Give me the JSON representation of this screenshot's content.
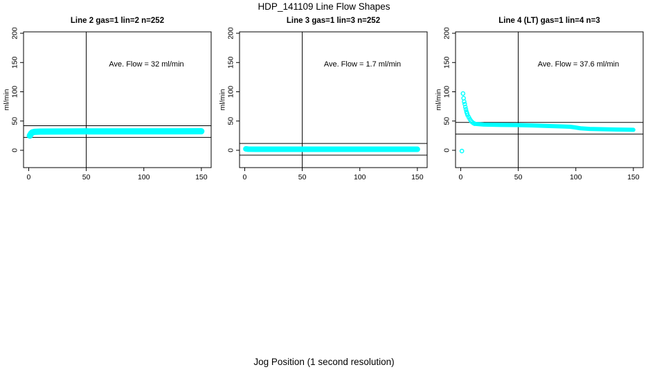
{
  "figure": {
    "title": "HDP_141109  Line Flow Shapes",
    "xlabel": "Jog Position (1 second resolution)",
    "point_color": "#00ffff",
    "axis_color": "#000000",
    "background_color": "#ffffff"
  },
  "chart_data": [
    {
      "type": "scatter",
      "title": "Line 2 gas=1 lin=2 n=252",
      "annotation": "Ave. Flow =  32  ml/min",
      "ave_flow_ml_min": 32,
      "params": {
        "line": "Line 2",
        "gas": 1,
        "lin": 2,
        "n": 252
      },
      "ylabel": "ml/min",
      "x_ticks": [
        0,
        50,
        100,
        150
      ],
      "y_ticks": [
        0,
        50,
        100,
        150,
        200
      ],
      "xlim": [
        -4.5,
        158.5
      ],
      "ylim": [
        -29.6,
        202.4
      ],
      "vline_x": 50,
      "hlines_y": [
        42,
        22
      ],
      "band": {
        "points": [
          [
            1,
            25
          ],
          [
            2,
            28.5
          ],
          [
            3,
            30.5
          ],
          [
            5,
            31.5
          ],
          [
            10,
            32
          ],
          [
            40,
            32.3
          ],
          [
            150,
            32.5
          ]
        ],
        "thickness_px": 9
      },
      "points": [
        [
          1,
          25
        ]
      ]
    },
    {
      "type": "scatter",
      "title": "Line 3 gas=1 lin=3 n=252",
      "annotation": "Ave. Flow =  1.7  ml/min",
      "ave_flow_ml_min": 1.7,
      "params": {
        "line": "Line 3",
        "gas": 1,
        "lin": 3,
        "n": 252
      },
      "ylabel": "ml/min",
      "x_ticks": [
        0,
        50,
        100,
        150
      ],
      "y_ticks": [
        0,
        50,
        100,
        150,
        200
      ],
      "xlim": [
        -4.5,
        158.5
      ],
      "ylim": [
        -29.6,
        202.4
      ],
      "vline_x": 50,
      "hlines_y": [
        11.7,
        -8.3
      ],
      "band": {
        "points": [
          [
            1,
            2.4
          ],
          [
            3,
            1.9
          ],
          [
            10,
            1.7
          ],
          [
            150,
            1.7
          ]
        ],
        "thickness_px": 8
      },
      "points": [
        [
          1,
          3
        ]
      ]
    },
    {
      "type": "scatter",
      "title": "Line 4 (LT) gas=1 lin=4 n=3",
      "annotation": "Ave. Flow =  37.6  ml/min",
      "ave_flow_ml_min": 37.6,
      "params": {
        "line": "Line 4 (LT)",
        "gas": 1,
        "lin": 4,
        "n": 3
      },
      "ylabel": "ml/min",
      "x_ticks": [
        0,
        50,
        100,
        150
      ],
      "y_ticks": [
        0,
        50,
        100,
        150,
        200
      ],
      "xlim": [
        -4.5,
        158.5
      ],
      "ylim": [
        -29.6,
        202.4
      ],
      "vline_x": 50,
      "hlines_y": [
        47.6,
        27.6
      ],
      "band": {
        "points": [
          [
            12,
            45.2
          ],
          [
            20,
            43.9
          ],
          [
            35,
            43.3
          ],
          [
            50,
            43
          ],
          [
            62,
            42.4
          ],
          [
            75,
            41.6
          ],
          [
            87,
            40.9
          ],
          [
            95,
            40.2
          ],
          [
            99,
            39.2
          ],
          [
            104,
            37.6
          ],
          [
            112,
            36.6
          ],
          [
            125,
            35.9
          ],
          [
            140,
            35.3
          ],
          [
            150,
            35
          ]
        ],
        "thickness_px": 6
      },
      "points": [
        [
          1,
          -1.3
        ],
        [
          2,
          97
        ],
        [
          2.5,
          89
        ],
        [
          3,
          83
        ],
        [
          3.5,
          79
        ],
        [
          4,
          74
        ],
        [
          4.5,
          70
        ],
        [
          5,
          66
        ],
        [
          5.5,
          63
        ],
        [
          6,
          60
        ],
        [
          7,
          56.5
        ],
        [
          8,
          53
        ],
        [
          9,
          50
        ],
        [
          10,
          48
        ],
        [
          11,
          46.5
        ],
        [
          12,
          45.5
        ]
      ]
    }
  ]
}
